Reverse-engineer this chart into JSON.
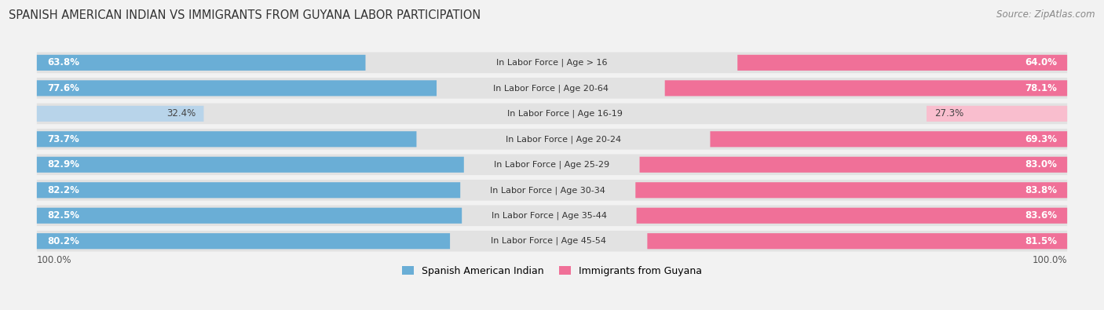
{
  "title": "SPANISH AMERICAN INDIAN VS IMMIGRANTS FROM GUYANA LABOR PARTICIPATION",
  "source": "Source: ZipAtlas.com",
  "categories": [
    "In Labor Force | Age > 16",
    "In Labor Force | Age 20-64",
    "In Labor Force | Age 16-19",
    "In Labor Force | Age 20-24",
    "In Labor Force | Age 25-29",
    "In Labor Force | Age 30-34",
    "In Labor Force | Age 35-44",
    "In Labor Force | Age 45-54"
  ],
  "left_values": [
    63.8,
    77.6,
    32.4,
    73.7,
    82.9,
    82.2,
    82.5,
    80.2
  ],
  "right_values": [
    64.0,
    78.1,
    27.3,
    69.3,
    83.0,
    83.8,
    83.6,
    81.5
  ],
  "left_color": "#6aaed6",
  "right_color": "#f07098",
  "left_color_light": "#b8d4ea",
  "right_color_light": "#f9bece",
  "left_label": "Spanish American Indian",
  "right_label": "Immigrants from Guyana",
  "background_color": "#f2f2f2",
  "row_bg_color": "#e2e2e2",
  "max_value": 100.0,
  "title_fontsize": 10.5,
  "source_fontsize": 8.5,
  "label_fontsize": 8.0,
  "value_fontsize": 8.5,
  "bar_height": 0.62,
  "axis_label_fontsize": 8.5
}
